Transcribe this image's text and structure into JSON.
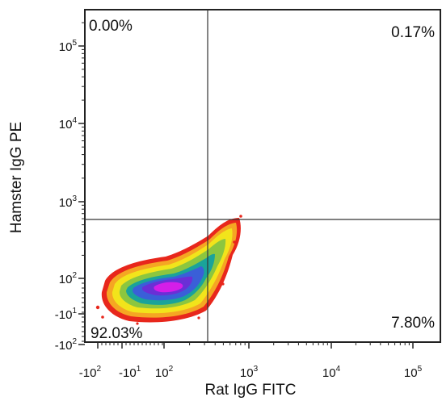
{
  "chart_data": {
    "type": "scatter",
    "subtype": "flow-cytometry-density-plot",
    "xlabel": "Rat IgG FITC",
    "ylabel": "Hamster IgG PE",
    "x_scale": "biexponential",
    "y_scale": "biexponential",
    "x_ticks": [
      {
        "base": "-10",
        "exp": "2",
        "value": -100
      },
      {
        "base": "-10",
        "exp": "1",
        "value": -10
      },
      {
        "base": "10",
        "exp": "2",
        "value": 100
      },
      {
        "base": "10",
        "exp": "3",
        "value": 1000
      },
      {
        "base": "10",
        "exp": "4",
        "value": 10000
      },
      {
        "base": "10",
        "exp": "5",
        "value": 100000
      }
    ],
    "y_ticks": [
      {
        "base": "-10",
        "exp": "2",
        "value": -100
      },
      {
        "base": "-10",
        "exp": "1",
        "value": -10
      },
      {
        "base": "10",
        "exp": "2",
        "value": 100
      },
      {
        "base": "10",
        "exp": "3",
        "value": 1000
      },
      {
        "base": "10",
        "exp": "4",
        "value": 10000
      },
      {
        "base": "10",
        "exp": "5",
        "value": 100000
      }
    ],
    "quadrant_gate": {
      "x": 700,
      "y": 750
    },
    "quadrants": [
      {
        "position": "upper-left",
        "label": "0.00%"
      },
      {
        "position": "upper-right",
        "label": "0.17%"
      },
      {
        "position": "lower-left",
        "label": "92.03%"
      },
      {
        "position": "lower-right",
        "label": "7.80%"
      }
    ],
    "density_colors": [
      "#e8271c",
      "#f5a623",
      "#f2e41b",
      "#8cc63f",
      "#1aa39a",
      "#3a5fd8",
      "#6a2fd6",
      "#d41ee8"
    ],
    "grid": false,
    "legend": "none"
  }
}
